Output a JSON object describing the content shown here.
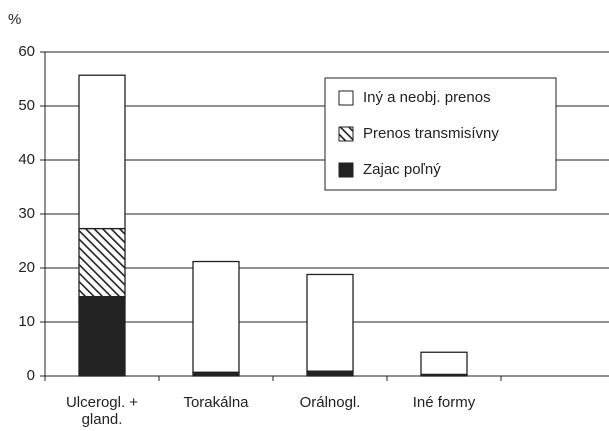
{
  "chart_data": {
    "type": "stacked-bar",
    "y_label": "%",
    "categories": [
      "Ulcerogl. + gland.",
      "Torakálna",
      "Orálnogl.",
      "Iné formy"
    ],
    "series": [
      {
        "name": "Zajac poľný",
        "color": "#222222",
        "pattern": "solid",
        "values": [
          14.7,
          0.7,
          0.9,
          0.3
        ]
      },
      {
        "name": "Prenos transmisívny",
        "color": "#222222",
        "pattern": "hatch",
        "values": [
          12.6,
          0,
          0,
          0
        ]
      },
      {
        "name": "Iný a neobj. prenos",
        "color": "#ffffff",
        "pattern": "solid",
        "values": [
          28.4,
          20.5,
          17.9,
          4.1
        ]
      }
    ],
    "ylim": [
      0,
      60
    ],
    "yticks": [
      0,
      10,
      20,
      30,
      40,
      50,
      60
    ],
    "grid": true,
    "legend": "top-right"
  }
}
